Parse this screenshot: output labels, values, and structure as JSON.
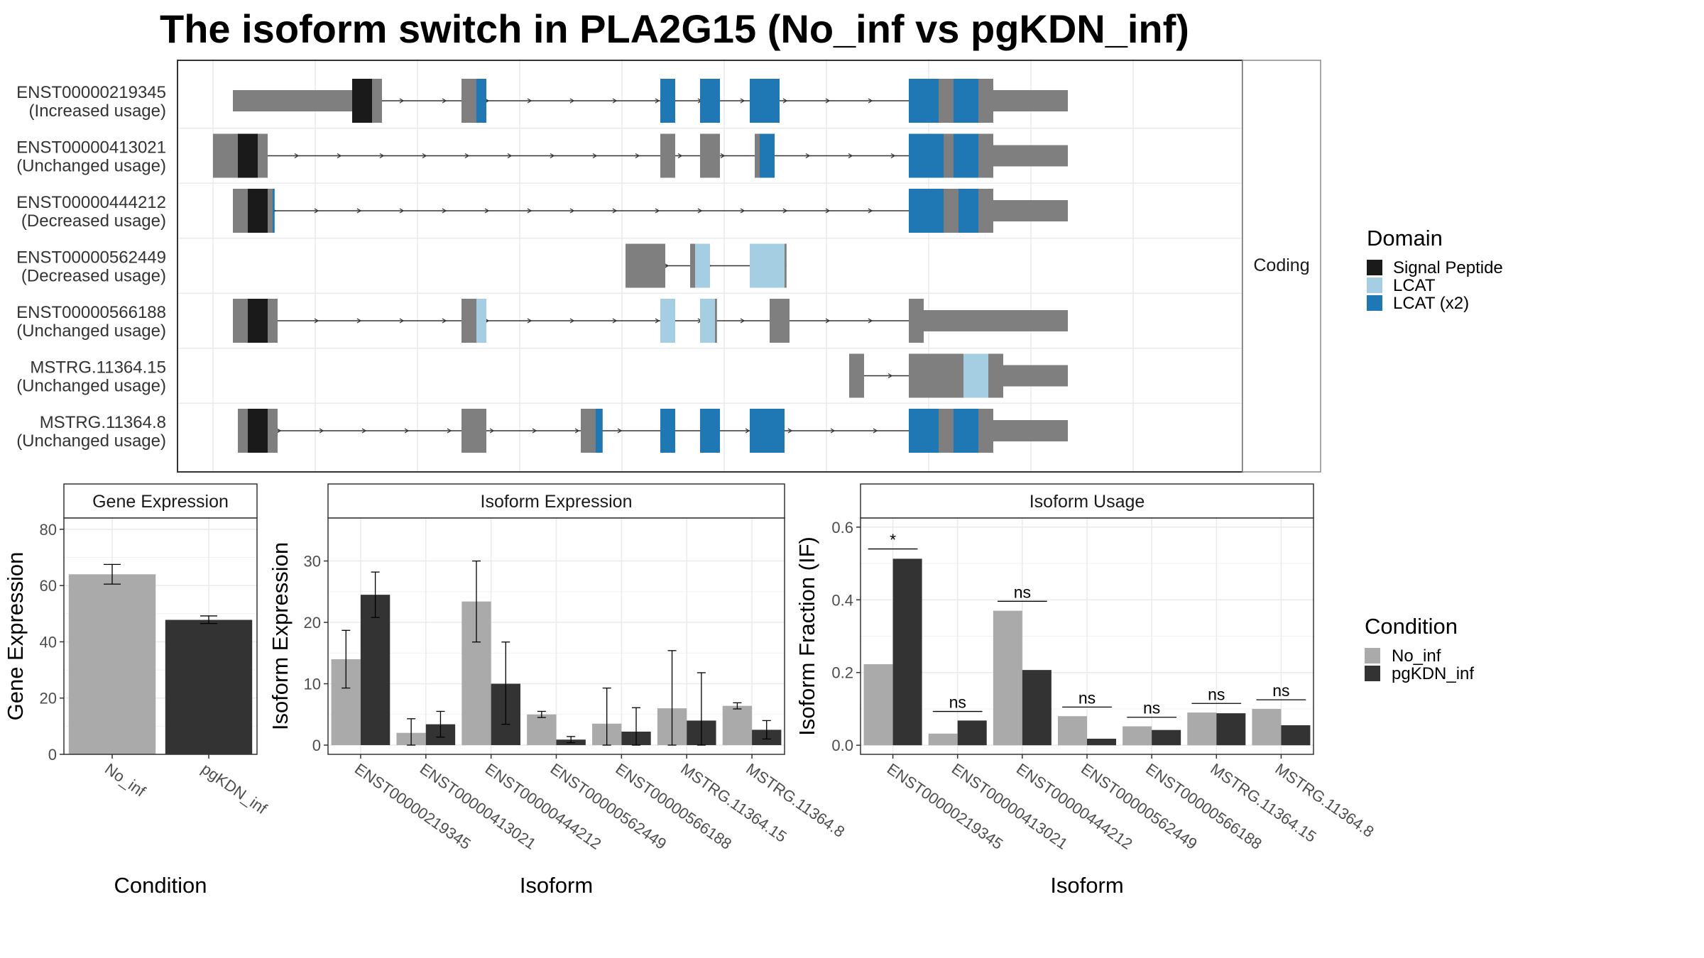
{
  "title": "The isoform switch in PLA2G15 (No_inf vs pgKDN_inf)",
  "colors": {
    "utr": "#7f7f7f",
    "signal_peptide": "#1a1a1a",
    "lcat": "#a6cee3",
    "lcat_x2": "#1f78b4",
    "no_inf": "#aaaaaa",
    "pgkdn_inf": "#333333",
    "panel_border": "#333333",
    "strip_fill": "#ffffff",
    "grid": "#ebebeb"
  },
  "chart_data": [
    {
      "type": "gene-structure",
      "panel": "transcripts",
      "strip_label": "Coding",
      "legend_title": "Domain",
      "legend": [
        {
          "label": "Signal Peptide",
          "color": "#1a1a1a"
        },
        {
          "label": "LCAT",
          "color": "#a6cee3"
        },
        {
          "label": "LCAT (x2)",
          "color": "#1f78b4"
        }
      ],
      "xlim": [
        0,
        1000
      ],
      "isoforms": [
        {
          "name": "ENST00000219345",
          "usage": "(Increased usage)",
          "exons": [
            [
              20,
              140,
              "utr"
            ],
            [
              140,
              160,
              "sp"
            ],
            [
              160,
              170,
              "utr"
            ],
            [
              250,
              265,
              "utr"
            ],
            [
              265,
              275,
              "lcat2"
            ],
            [
              450,
              465,
              "lcat2"
            ],
            [
              490,
              510,
              "lcat2"
            ],
            [
              540,
              570,
              "lcat2"
            ],
            [
              700,
              730,
              "lcat2"
            ],
            [
              730,
              745,
              "utr"
            ],
            [
              745,
              770,
              "lcat2"
            ],
            [
              770,
              785,
              "utr"
            ]
          ],
          "utr_spans": [
            [
              20,
              130
            ],
            [
              785,
              860
            ]
          ]
        },
        {
          "name": "ENST00000413021",
          "usage": "(Unchanged usage)",
          "exons": [
            [
              0,
              25,
              "utr"
            ],
            [
              25,
              45,
              "sp"
            ],
            [
              45,
              55,
              "utr"
            ],
            [
              450,
              465,
              "utr"
            ],
            [
              490,
              510,
              "utr"
            ],
            [
              545,
              550,
              "utr"
            ],
            [
              550,
              565,
              "lcat2"
            ],
            [
              700,
              735,
              "lcat2"
            ],
            [
              735,
              745,
              "utr"
            ],
            [
              745,
              770,
              "lcat2"
            ],
            [
              770,
              785,
              "utr"
            ]
          ],
          "utr_spans": [
            [
              785,
              860
            ]
          ]
        },
        {
          "name": "ENST00000444212",
          "usage": "(Decreased usage)",
          "exons": [
            [
              20,
              35,
              "utr"
            ],
            [
              35,
              55,
              "sp"
            ],
            [
              55,
              60,
              "utr"
            ],
            [
              60,
              62,
              "lcat2"
            ],
            [
              700,
              735,
              "lcat2"
            ],
            [
              735,
              750,
              "utr"
            ],
            [
              750,
              770,
              "lcat2"
            ],
            [
              770,
              785,
              "utr"
            ]
          ],
          "utr_spans": [
            [
              785,
              860
            ]
          ]
        },
        {
          "name": "ENST00000562449",
          "usage": "(Decreased usage)",
          "exons": [
            [
              415,
              455,
              "utr"
            ],
            [
              480,
              485,
              "utr"
            ],
            [
              485,
              500,
              "lcat"
            ],
            [
              540,
              575,
              "lcat"
            ],
            [
              575,
              577,
              "utr"
            ]
          ],
          "utr_spans": []
        },
        {
          "name": "ENST00000566188",
          "usage": "(Unchanged usage)",
          "exons": [
            [
              20,
              35,
              "utr"
            ],
            [
              35,
              55,
              "sp"
            ],
            [
              55,
              65,
              "utr"
            ],
            [
              250,
              265,
              "utr"
            ],
            [
              265,
              275,
              "lcat"
            ],
            [
              450,
              465,
              "lcat"
            ],
            [
              490,
              505,
              "lcat"
            ],
            [
              505,
              507,
              "utr"
            ],
            [
              560,
              580,
              "utr"
            ],
            [
              700,
              715,
              "utr"
            ]
          ],
          "utr_spans": [
            [
              715,
              860
            ]
          ]
        },
        {
          "name": "MSTRG.11364.15",
          "usage": "(Unchanged usage)",
          "exons": [
            [
              640,
              655,
              "utr"
            ],
            [
              700,
              745,
              "utr"
            ],
            [
              745,
              755,
              "utr"
            ],
            [
              755,
              780,
              "lcat"
            ],
            [
              780,
              795,
              "utr"
            ]
          ],
          "utr_spans": [
            [
              795,
              860
            ]
          ]
        },
        {
          "name": "MSTRG.11364.8",
          "usage": "(Unchanged usage)",
          "exons": [
            [
              25,
              35,
              "utr"
            ],
            [
              35,
              55,
              "sp"
            ],
            [
              55,
              65,
              "utr"
            ],
            [
              250,
              275,
              "utr"
            ],
            [
              370,
              385,
              "utr"
            ],
            [
              385,
              392,
              "lcat2"
            ],
            [
              450,
              465,
              "lcat2"
            ],
            [
              490,
              510,
              "lcat2"
            ],
            [
              540,
              575,
              "lcat2"
            ],
            [
              700,
              730,
              "lcat2"
            ],
            [
              730,
              745,
              "utr"
            ],
            [
              745,
              770,
              "lcat2"
            ],
            [
              770,
              785,
              "utr"
            ]
          ],
          "utr_spans": [
            [
              785,
              860
            ]
          ]
        }
      ]
    },
    {
      "type": "bar",
      "panel": "gene_expression",
      "title": "Gene Expression",
      "xlabel": "Condition",
      "ylabel": "Gene Expression",
      "categories": [
        "No_inf",
        "pgKDN_inf"
      ],
      "values": [
        64,
        47.8
      ],
      "errors": [
        [
          60.5,
          67.5
        ],
        [
          46.5,
          49.2
        ]
      ],
      "ylim": [
        0,
        84
      ],
      "yticks": [
        0,
        20,
        40,
        60,
        80
      ]
    },
    {
      "type": "bar",
      "panel": "isoform_expression",
      "title": "Isoform Expression",
      "xlabel": "Isoform",
      "ylabel": "Isoform Expression",
      "categories": [
        "ENST00000219345",
        "ENST00000413021",
        "ENST00000444212",
        "ENST00000562449",
        "ENST00000566188",
        "MSTRG.11364.15",
        "MSTRG.11364.8"
      ],
      "series": [
        {
          "name": "No_inf",
          "values": [
            14,
            2,
            23.4,
            5,
            3.5,
            6,
            6.4
          ],
          "errors": [
            [
              9.3,
              18.7
            ],
            [
              0,
              4.3
            ],
            [
              16.8,
              30
            ],
            [
              4.5,
              5.5
            ],
            [
              0,
              9.3
            ],
            [
              0,
              15.4
            ],
            [
              5.9,
              6.9
            ]
          ]
        },
        {
          "name": "pgKDN_inf",
          "values": [
            24.5,
            3.4,
            10,
            0.9,
            2.2,
            4,
            2.5
          ],
          "errors": [
            [
              20.8,
              28.2
            ],
            [
              1.3,
              5.5
            ],
            [
              3.4,
              16.8
            ],
            [
              0.4,
              1.4
            ],
            [
              0,
              6.1
            ],
            [
              0,
              11.8
            ],
            [
              1,
              4
            ]
          ]
        }
      ],
      "ylim": [
        -1.5,
        37
      ],
      "yticks": [
        0,
        10,
        20,
        30
      ]
    },
    {
      "type": "bar",
      "panel": "isoform_usage",
      "title": "Isoform Usage",
      "xlabel": "Isoform",
      "ylabel": "Isoform Fraction (IF)",
      "categories": [
        "ENST00000219345",
        "ENST00000413021",
        "ENST00000444212",
        "ENST00000562449",
        "ENST00000566188",
        "MSTRG.11364.15",
        "MSTRG.11364.8"
      ],
      "series": [
        {
          "name": "No_inf",
          "values": [
            0.223,
            0.032,
            0.37,
            0.08,
            0.052,
            0.09,
            0.1
          ]
        },
        {
          "name": "pgKDN_inf",
          "values": [
            0.513,
            0.068,
            0.207,
            0.018,
            0.042,
            0.088,
            0.055
          ]
        }
      ],
      "significance": [
        {
          "label": "*",
          "y": 0.54
        },
        {
          "label": "ns",
          "y": 0.093
        },
        {
          "label": "ns",
          "y": 0.396
        },
        {
          "label": "ns",
          "y": 0.105
        },
        {
          "label": "ns",
          "y": 0.077
        },
        {
          "label": "ns",
          "y": 0.115
        },
        {
          "label": "ns",
          "y": 0.125
        }
      ],
      "ylim": [
        -0.025,
        0.625
      ],
      "yticks": [
        0.0,
        0.2,
        0.4,
        0.6
      ]
    }
  ],
  "condition_legend": {
    "title": "Condition",
    "items": [
      {
        "label": "No_inf",
        "color": "#aaaaaa"
      },
      {
        "label": "pgKDN_inf",
        "color": "#333333"
      }
    ]
  }
}
